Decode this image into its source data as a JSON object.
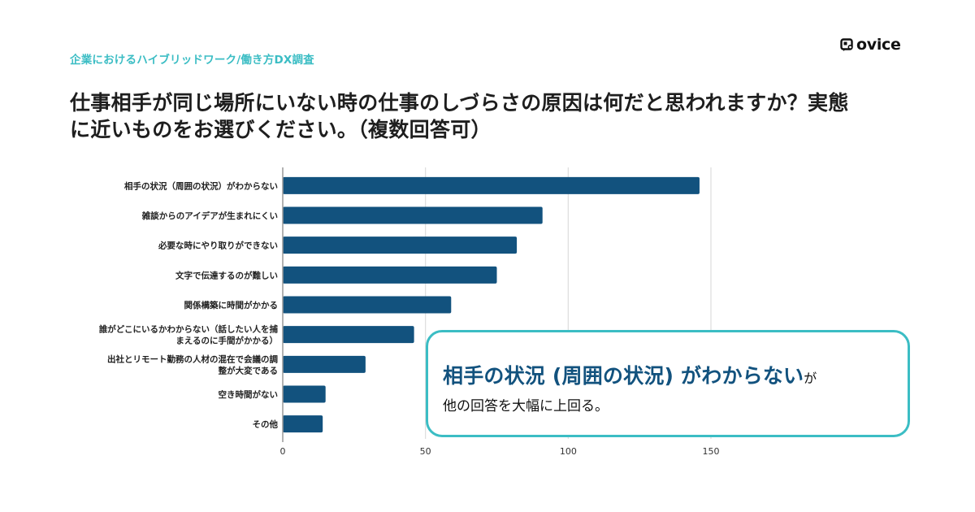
{
  "header": {
    "subtitle": "企業におけるハイブリッドワーク/働き方DX調査",
    "logo_text": "ovice",
    "title_line1": "仕事相手が同じ場所にいない時の仕事のしづらさの原因は何だと思われますか？実態",
    "title_line2": "に近いものをお選びください。（複数回答可）"
  },
  "colors": {
    "bar": "#12527e",
    "accent": "#3bbdc4",
    "grid": "#dddddd",
    "axis": "#999999"
  },
  "chart_data": {
    "type": "bar",
    "orientation": "horizontal",
    "title": "仕事相手が同じ場所にいない時の仕事のしづらさの原因は何だと思われますか？実態に近いものをお選びください。（複数回答可）",
    "xlabel": "",
    "ylabel": "",
    "categories": [
      [
        "相手の状況（周囲の状況）がわからない"
      ],
      [
        "雑談からのアイデアが生まれにくい"
      ],
      [
        "必要な時にやり取りができない"
      ],
      [
        "文字で伝達するのが難しい"
      ],
      [
        "関係構築に時間がかかる"
      ],
      [
        "誰がどこにいるかわからない（話したい人を捕",
        "まえるのに手間がかかる）"
      ],
      [
        "出社とリモート勤務の人材の混在で会議の調",
        "整が大変である"
      ],
      [
        "空き時間がない"
      ],
      [
        "その他"
      ]
    ],
    "values": [
      146,
      91,
      82,
      75,
      59,
      46,
      29,
      15,
      14
    ],
    "xlim": [
      0,
      150
    ],
    "xticks": [
      0,
      50,
      100,
      150
    ],
    "grid": true,
    "legend": "none"
  },
  "callout": {
    "highlight": "相手の状況 (周囲の状況) がわからない",
    "suffix": "が",
    "line2": "他の回答を大幅に上回る。"
  }
}
